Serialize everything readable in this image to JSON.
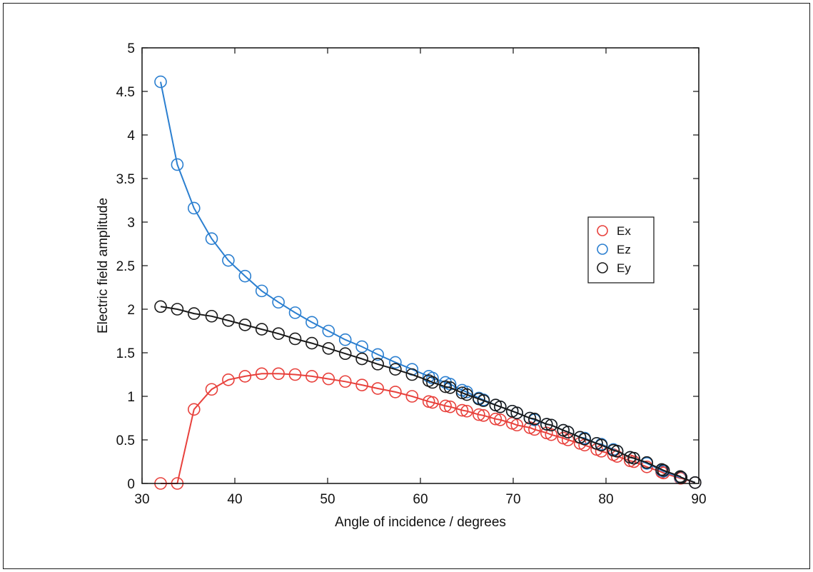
{
  "chart_data": {
    "type": "line",
    "title": "",
    "xlabel": "Angle of incidence / degrees",
    "ylabel": "Electric field amplitude",
    "xlim": [
      30,
      90
    ],
    "ylim": [
      0,
      5
    ],
    "xticks": [
      30,
      40,
      50,
      60,
      70,
      80,
      90
    ],
    "yticks": [
      0,
      0.5,
      1,
      1.5,
      2,
      2.5,
      3,
      3.5,
      4,
      4.5,
      5
    ],
    "xtick_labels": [
      "30",
      "40",
      "50",
      "60",
      "70",
      "80",
      "90"
    ],
    "ytick_labels": [
      "0",
      "0.5",
      "1",
      "1.5",
      "2",
      "2.5",
      "3",
      "3.5",
      "4",
      "4.5",
      "5"
    ],
    "grid": false,
    "legend_position": "right",
    "markers": "open-circle",
    "series": [
      {
        "name": "Ex",
        "color": "#e8413c",
        "x": [
          32.0,
          33.8,
          35.6,
          37.5,
          39.3,
          41.1,
          42.9,
          44.7,
          46.5,
          48.3,
          50.1,
          51.9,
          53.7,
          55.4,
          57.3,
          59.1,
          60.9,
          61.3,
          62.7,
          63.2,
          64.5,
          65.0,
          66.3,
          66.8,
          68.1,
          68.6,
          69.9,
          70.4,
          71.8,
          72.3,
          73.6,
          74.1,
          75.4,
          75.9,
          77.2,
          77.7,
          79.0,
          79.5,
          80.8,
          81.2,
          82.6,
          83.0,
          84.4,
          86.0,
          86.2,
          88.0,
          88.1,
          89.6
        ],
        "y": [
          0.0,
          0.0,
          0.85,
          1.08,
          1.19,
          1.23,
          1.26,
          1.26,
          1.25,
          1.23,
          1.2,
          1.17,
          1.13,
          1.09,
          1.05,
          1.0,
          0.94,
          0.93,
          0.89,
          0.88,
          0.84,
          0.83,
          0.79,
          0.78,
          0.74,
          0.73,
          0.69,
          0.67,
          0.64,
          0.62,
          0.58,
          0.56,
          0.52,
          0.5,
          0.46,
          0.44,
          0.39,
          0.37,
          0.33,
          0.31,
          0.26,
          0.25,
          0.19,
          0.13,
          0.12,
          0.06,
          0.06,
          0.01
        ]
      },
      {
        "name": "Ez",
        "color": "#2b7fd0",
        "x": [
          32.0,
          33.8,
          35.6,
          37.5,
          39.3,
          41.1,
          42.9,
          44.7,
          46.5,
          48.3,
          50.1,
          51.9,
          53.7,
          55.4,
          57.3,
          59.1,
          60.9,
          61.3,
          62.7,
          63.2,
          64.5,
          65.0,
          66.3,
          66.8,
          68.1,
          68.6,
          69.9,
          70.4,
          71.8,
          72.3,
          73.6,
          74.1,
          75.4,
          75.9,
          77.2,
          77.7,
          79.0,
          79.5,
          80.8,
          81.2,
          82.6,
          83.0,
          84.4,
          86.0,
          86.2,
          88.0,
          88.1,
          89.6
        ],
        "y": [
          4.61,
          3.66,
          3.16,
          2.81,
          2.56,
          2.38,
          2.21,
          2.08,
          1.96,
          1.85,
          1.75,
          1.65,
          1.57,
          1.48,
          1.39,
          1.31,
          1.23,
          1.21,
          1.16,
          1.14,
          1.07,
          1.05,
          0.98,
          0.96,
          0.9,
          0.88,
          0.83,
          0.81,
          0.75,
          0.73,
          0.68,
          0.67,
          0.61,
          0.59,
          0.53,
          0.52,
          0.46,
          0.45,
          0.39,
          0.37,
          0.3,
          0.29,
          0.23,
          0.15,
          0.14,
          0.07,
          0.07,
          0.01
        ]
      },
      {
        "name": "Ey",
        "color": "#1a1a1a",
        "x": [
          32.0,
          33.8,
          35.6,
          37.5,
          39.3,
          41.1,
          42.9,
          44.7,
          46.5,
          48.3,
          50.1,
          51.9,
          53.7,
          55.4,
          57.3,
          59.1,
          60.9,
          61.3,
          62.7,
          63.2,
          64.5,
          65.0,
          66.3,
          66.8,
          68.1,
          68.6,
          69.9,
          70.4,
          71.8,
          72.3,
          73.6,
          74.1,
          75.4,
          75.9,
          77.2,
          77.7,
          79.0,
          79.5,
          80.8,
          81.2,
          82.6,
          83.0,
          84.4,
          86.0,
          86.2,
          88.0,
          88.1,
          89.6
        ],
        "y": [
          2.03,
          2.0,
          1.95,
          1.92,
          1.87,
          1.82,
          1.77,
          1.72,
          1.66,
          1.61,
          1.55,
          1.49,
          1.43,
          1.37,
          1.31,
          1.25,
          1.18,
          1.16,
          1.11,
          1.1,
          1.04,
          1.02,
          0.97,
          0.95,
          0.9,
          0.88,
          0.83,
          0.81,
          0.75,
          0.74,
          0.68,
          0.67,
          0.61,
          0.59,
          0.53,
          0.51,
          0.46,
          0.44,
          0.38,
          0.37,
          0.3,
          0.29,
          0.24,
          0.16,
          0.15,
          0.08,
          0.07,
          0.01
        ]
      }
    ],
    "legend": [
      {
        "label": "Ex",
        "color": "#e8413c"
      },
      {
        "label": "Ez",
        "color": "#2b7fd0"
      },
      {
        "label": "Ey",
        "color": "#1a1a1a"
      }
    ]
  }
}
